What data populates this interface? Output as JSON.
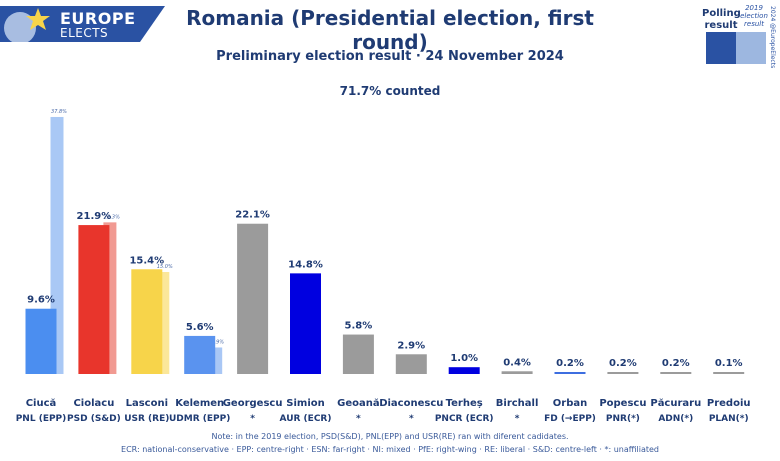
{
  "logo": {
    "line1": "EUROPE",
    "line2": "ELECTS"
  },
  "header": {
    "title": "Romania (Presidential election, first round)",
    "subtitle": "Preliminary election result · 24 November 2024",
    "counted": "71.7% counted"
  },
  "legend": {
    "current_label": "Polling result",
    "previous_label": "2019 election result",
    "copyright": "2024 @EuropeElects"
  },
  "notes": {
    "line1": "Note: in the 2019 election, PSD(S&D), PNL(EPP) and USR(RE) ran with diferent cadidates.",
    "line2": "ECR: national-conservative · EPP: centre-right · ESN: far-right · NI: mixed · PfE: right-wing · RE: liberal · S&D: centre-left · *: unaffiliated"
  },
  "chart_data": {
    "type": "bar",
    "title": "Romania (Presidential election, first round)",
    "ylabel": "",
    "xlabel": "",
    "ylim": [
      0,
      40
    ],
    "categories": [
      "Ciucă",
      "Ciolacu",
      "Lasconi",
      "Kelemen",
      "Georgescu",
      "Simion",
      "Geoană",
      "Diaconescu",
      "Terheș",
      "Birchall",
      "Orban",
      "Popescu",
      "Păcuraru",
      "Predoiu"
    ],
    "parties": [
      "PNL (EPP)",
      "PSD (S&D)",
      "USR (RE)",
      "UDMR (EPP)",
      "*",
      "AUR (ECR)",
      "*",
      "*",
      "PNCR (ECR)",
      "*",
      "FD (→EPP)",
      "PNR(*)",
      "ADN(*)",
      "PLAN(*)"
    ],
    "series": [
      {
        "name": "Polling result",
        "values": [
          9.6,
          21.9,
          15.4,
          5.6,
          22.1,
          14.8,
          5.8,
          2.9,
          1.0,
          0.4,
          0.2,
          0.2,
          0.2,
          0.1
        ],
        "labels": [
          "9.6%",
          "21.9%",
          "15.4%",
          "5.6%",
          "22.1%",
          "14.8%",
          "5.8%",
          "2.9%",
          "1.0%",
          "0.4%",
          "0.2%",
          "0.2%",
          "0.2%",
          "0.1%"
        ]
      },
      {
        "name": "2019 election result",
        "values": [
          37.8,
          22.3,
          15.0,
          3.9,
          null,
          null,
          null,
          null,
          null,
          null,
          null,
          null,
          null,
          null
        ],
        "labels": [
          "37.8%",
          "22.3%",
          "15.0%",
          "3.9%",
          null,
          null,
          null,
          null,
          null,
          null,
          null,
          null,
          null,
          null
        ]
      }
    ],
    "colors": [
      "#4b8ef0",
      "#e8352c",
      "#f7d44a",
      "#5a93ef",
      "#9b9b9b",
      "#0000e0",
      "#9b9b9b",
      "#9b9b9b",
      "#0000e0",
      "#9b9b9b",
      "#3d6ee0",
      "#9b9b9b",
      "#9b9b9b",
      "#9b9b9b"
    ],
    "colors_2019": [
      "#a9c8f5",
      "#f19a92",
      "#fbe79a",
      "#a9c7f5",
      null,
      null,
      null,
      null,
      null,
      null,
      null,
      null,
      null,
      null
    ]
  }
}
